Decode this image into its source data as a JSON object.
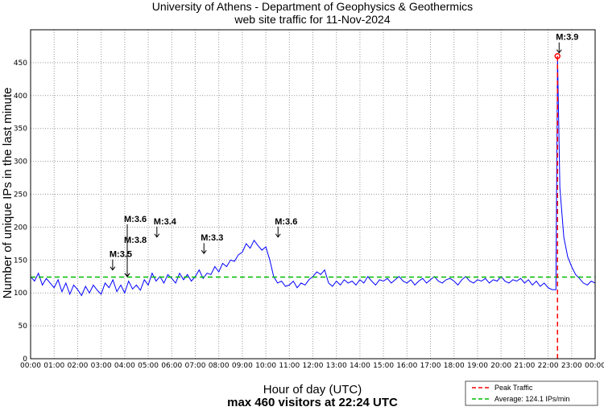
{
  "chart_data": {
    "type": "line",
    "title": [
      "University of Athens - Department of Geophysics & Geothermics",
      "web site traffic for 11-Nov-2024"
    ],
    "xlabel": "Hour of day (UTC)",
    "subxlabel": "max 460 visitors at 22:24 UTC",
    "ylabel": "Number of unique IPs in the last minute",
    "xlim": [
      0,
      24
    ],
    "ylim": [
      0,
      500
    ],
    "grid": true,
    "x_ticks": [
      "00:00",
      "01:00",
      "02:00",
      "03:00",
      "04:00",
      "05:00",
      "06:00",
      "07:00",
      "08:00",
      "09:00",
      "10:00",
      "11:00",
      "12:00",
      "13:00",
      "14:00",
      "15:00",
      "16:00",
      "17:00",
      "18:00",
      "19:00",
      "20:00",
      "21:00",
      "22:00",
      "23:00",
      "00:00"
    ],
    "y_ticks": [
      0,
      50,
      100,
      150,
      200,
      250,
      300,
      350,
      400,
      450
    ],
    "series_step_minutes": 10,
    "series": [
      125,
      118,
      130,
      112,
      122,
      115,
      108,
      120,
      102,
      115,
      98,
      112,
      105,
      96,
      110,
      100,
      112,
      104,
      98,
      115,
      108,
      120,
      102,
      112,
      100,
      118,
      106,
      112,
      104,
      120,
      112,
      130,
      118,
      125,
      115,
      128,
      122,
      115,
      130,
      120,
      128,
      118,
      125,
      135,
      122,
      130,
      128,
      140,
      132,
      145,
      140,
      150,
      148,
      158,
      162,
      175,
      168,
      180,
      172,
      165,
      170,
      150,
      125,
      115,
      118,
      110,
      112,
      118,
      108,
      115,
      112,
      120,
      125,
      132,
      128,
      135,
      115,
      110,
      118,
      112,
      120,
      115,
      118,
      112,
      120,
      115,
      125,
      118,
      112,
      120,
      118,
      122,
      115,
      120,
      125,
      118,
      115,
      120,
      112,
      118,
      122,
      115,
      120,
      125,
      118,
      115,
      120,
      122,
      118,
      112,
      120,
      125,
      118,
      115,
      120,
      118,
      122,
      115,
      120,
      118,
      125,
      118,
      115,
      120,
      118,
      122,
      115,
      120,
      112,
      118,
      110,
      115,
      108,
      105,
      105,
      260,
      185,
      155,
      140,
      128,
      122,
      115,
      112,
      118,
      115
    ],
    "peak": {
      "hour": 22.4,
      "value": 460
    },
    "average": 124.1,
    "colors": {
      "series": "#0000ff",
      "peak": "#ff0000",
      "average": "#00bb00"
    },
    "legend": {
      "position": "bottom-right",
      "entries": [
        "Peak Traffic",
        "Average: 124.1 IPs/min"
      ]
    },
    "annotations": [
      {
        "label": "M:3.5",
        "hour": 3.42,
        "value": 130
      },
      {
        "label": "M:3.8",
        "hour": 4.04,
        "value": 120
      },
      {
        "label": "M:3.6",
        "hour": 4.04,
        "value": 120
      },
      {
        "label": "M:3.4",
        "hour": 5.3,
        "value": 180
      },
      {
        "label": "M:3.3",
        "hour": 7.3,
        "value": 155
      },
      {
        "label": "M:3.6",
        "hour": 10.45,
        "value": 180
      },
      {
        "label": "M:3.9",
        "hour": 22.4,
        "value": 460
      }
    ]
  }
}
